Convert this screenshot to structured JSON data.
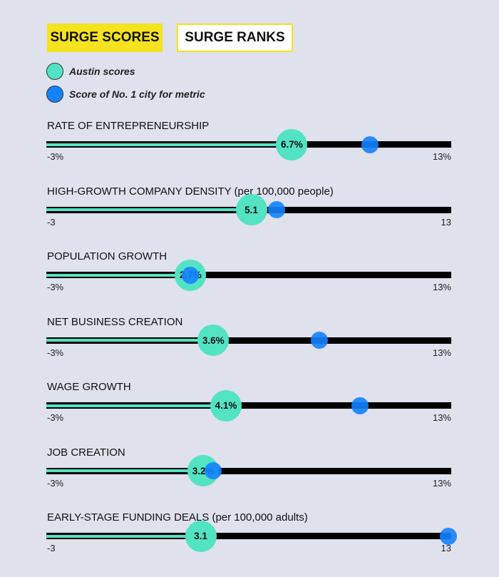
{
  "tabs": [
    {
      "label": "SURGE SCORES",
      "active": true
    },
    {
      "label": "SURGE RANKS",
      "active": false
    }
  ],
  "legend": [
    {
      "label": "Austin scores",
      "color": "#52e3c2"
    },
    {
      "label": "Score of No. 1 city for metric",
      "color": "#1482ff"
    }
  ],
  "metrics": [
    {
      "title": "RATE OF ENTREPRENEURSHIP",
      "austin": 6.7,
      "austin_label": "6.7%",
      "top": 9.8,
      "min": -3,
      "max": 13,
      "min_label": "-3%",
      "max_label": "13%"
    },
    {
      "title": "HIGH-GROWTH COMPANY DENSITY (per 100,000 people)",
      "austin": 5.1,
      "austin_label": "5.1",
      "top": 6.1,
      "min": -3,
      "max": 13,
      "min_label": "-3",
      "max_label": "13"
    },
    {
      "title": "POPULATION GROWTH",
      "austin": 2.7,
      "austin_label": "2.7%",
      "top": 2.7,
      "min": -3,
      "max": 13,
      "min_label": "-3%",
      "max_label": "13%"
    },
    {
      "title": "NET BUSINESS CREATION",
      "austin": 3.6,
      "austin_label": "3.6%",
      "top": 7.8,
      "min": -3,
      "max": 13,
      "min_label": "-3%",
      "max_label": "13%"
    },
    {
      "title": "WAGE GROWTH",
      "austin": 4.1,
      "austin_label": "4.1%",
      "top": 9.4,
      "min": -3,
      "max": 13,
      "min_label": "-3%",
      "max_label": "13%"
    },
    {
      "title": "JOB CREATION",
      "austin": 3.2,
      "austin_label": "3.2%",
      "top": 3.6,
      "min": -3,
      "max": 13,
      "min_label": "-3%",
      "max_label": "13%"
    },
    {
      "title": "EARLY-STAGE FUNDING DEALS (per 100,000 adults)",
      "austin": 3.1,
      "austin_label": "3.1",
      "top": 12.9,
      "min": -3,
      "max": 13,
      "min_label": "-3",
      "max_label": "13"
    }
  ]
}
